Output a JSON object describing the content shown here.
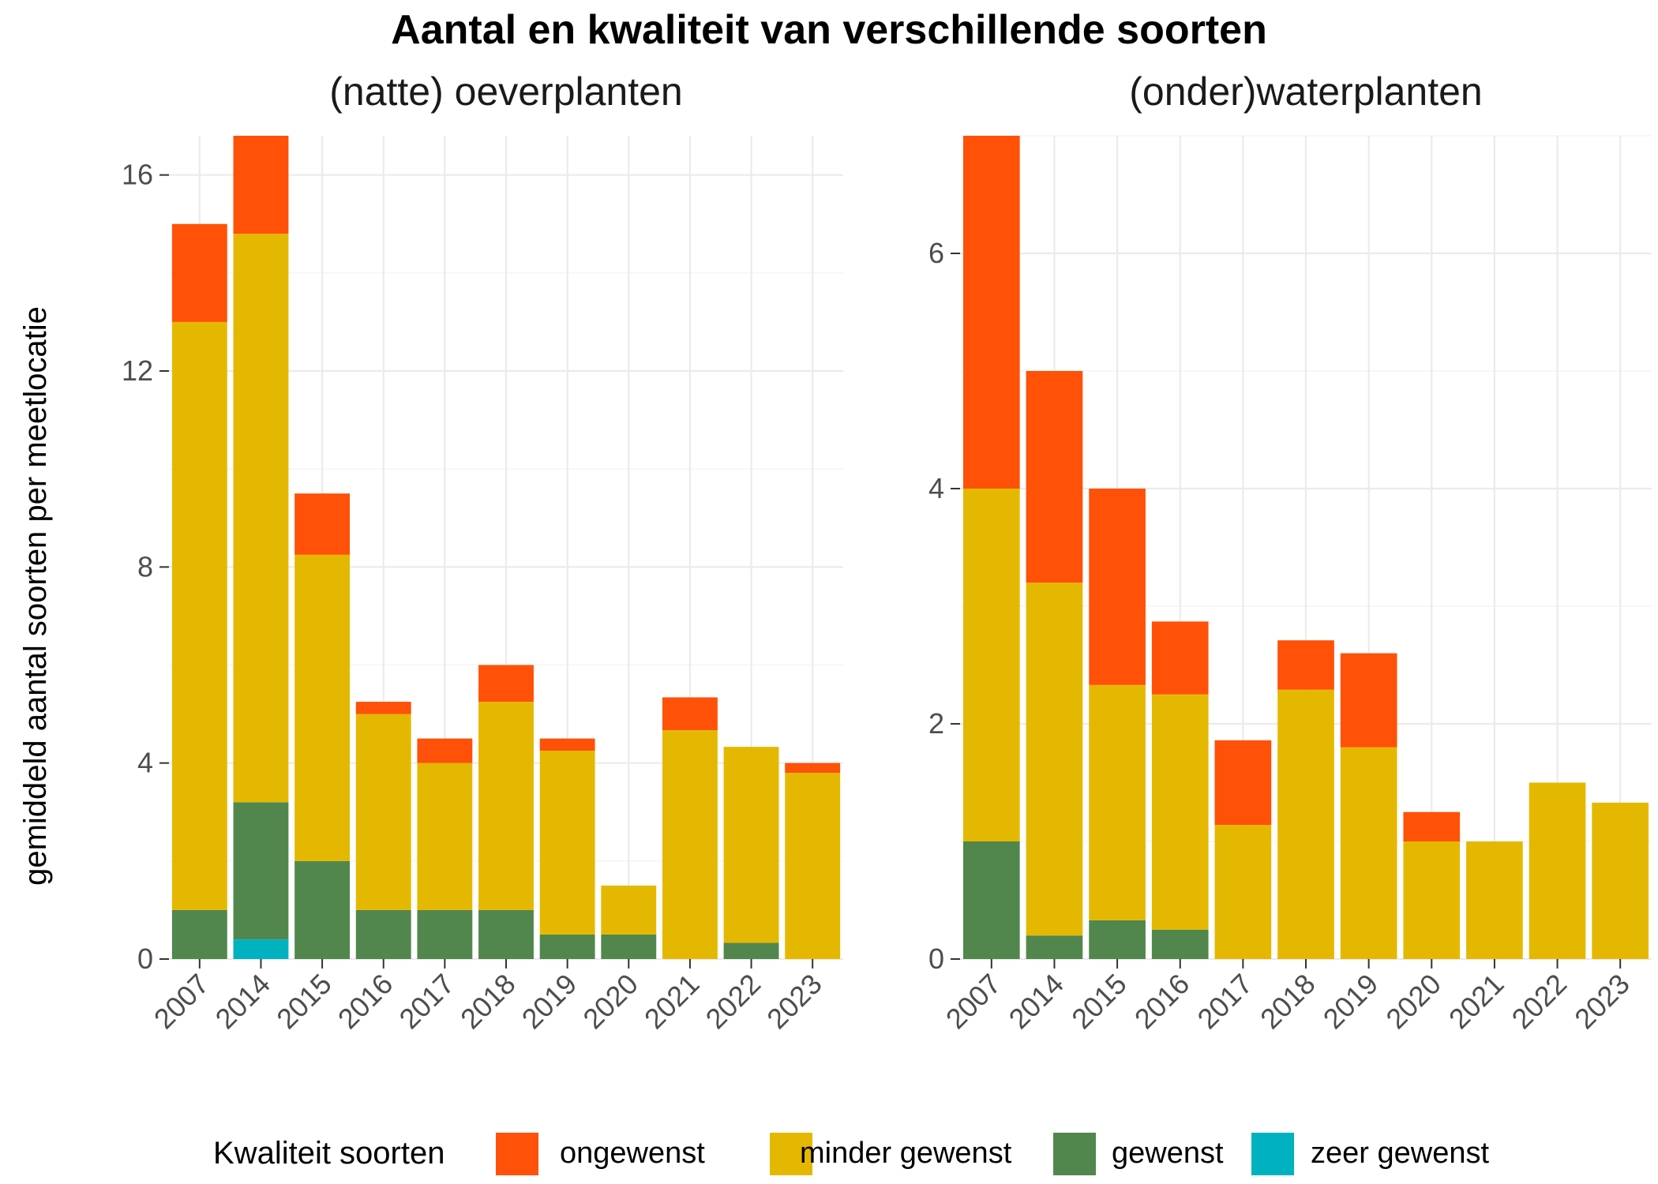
{
  "title": "Aantal en kwaliteit van verschillende soorten",
  "ylabel": "gemiddeld aantal soorten per meetlocatie",
  "legend": {
    "title": "Kwaliteit soorten",
    "items": [
      {
        "label": "ongewenst",
        "color": "#FF5108"
      },
      {
        "label": "minder gewenst",
        "color": "#E5B800"
      },
      {
        "label": "gewenst",
        "color": "#51874D"
      },
      {
        "label": "zeer gewenst",
        "color": "#00B2BF"
      }
    ],
    "placement": "bottom"
  },
  "chart_data": [
    {
      "type": "bar",
      "stacked": true,
      "subtitle": "(natte) oeverplanten",
      "categories": [
        "2007",
        "2014",
        "2015",
        "2016",
        "2017",
        "2018",
        "2019",
        "2020",
        "2021",
        "2022",
        "2023"
      ],
      "ylim": [
        0,
        16.8
      ],
      "yticks": [
        0,
        4,
        8,
        12,
        16
      ],
      "grid": true,
      "series": [
        {
          "name": "zeer gewenst",
          "values": [
            0,
            0.4,
            0,
            0,
            0,
            0,
            0,
            0,
            0,
            0,
            0
          ]
        },
        {
          "name": "gewenst",
          "values": [
            1,
            2.8,
            2,
            1,
            1,
            1,
            0.5,
            0.5,
            0,
            0.33,
            0
          ]
        },
        {
          "name": "minder gewenst",
          "values": [
            12,
            11.6,
            6.25,
            4,
            3,
            4.25,
            3.75,
            1,
            4.67,
            4,
            3.8
          ]
        },
        {
          "name": "ongewenst",
          "values": [
            2,
            2,
            1.25,
            0.25,
            0.5,
            0.75,
            0.25,
            0,
            0.67,
            0,
            0.2
          ]
        }
      ]
    },
    {
      "type": "bar",
      "stacked": true,
      "subtitle": "(onder)waterplanten",
      "categories": [
        "2007",
        "2014",
        "2015",
        "2016",
        "2017",
        "2018",
        "2019",
        "2020",
        "2021",
        "2022",
        "2023"
      ],
      "ylim": [
        0,
        7
      ],
      "yticks": [
        0,
        2,
        4,
        6
      ],
      "grid": true,
      "series": [
        {
          "name": "zeer gewenst",
          "values": [
            0,
            0,
            0,
            0,
            0,
            0,
            0,
            0,
            0,
            0,
            0
          ]
        },
        {
          "name": "gewenst",
          "values": [
            1,
            0.2,
            0.33,
            0.25,
            0,
            0,
            0,
            0,
            0,
            0,
            0
          ]
        },
        {
          "name": "minder gewenst",
          "values": [
            3,
            3,
            2,
            2,
            1.14,
            2.29,
            1.8,
            1,
            1,
            1.5,
            1.33
          ]
        },
        {
          "name": "ongewenst",
          "values": [
            3,
            1.8,
            1.67,
            0.62,
            0.72,
            0.42,
            0.8,
            0.25,
            0,
            0,
            0
          ]
        }
      ]
    }
  ]
}
